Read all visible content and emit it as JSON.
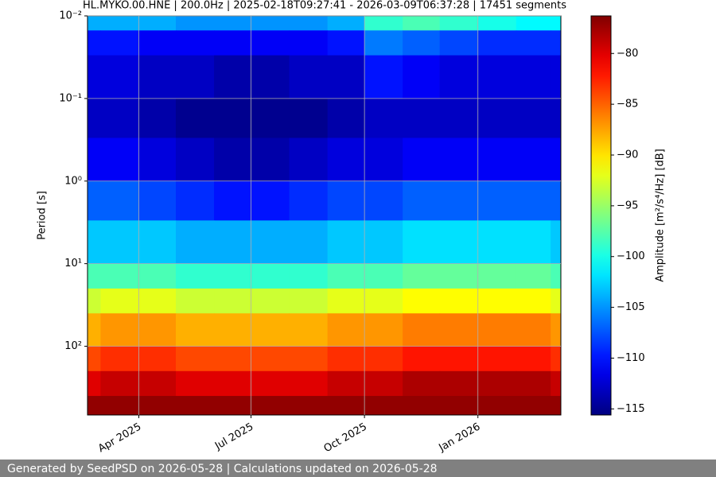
{
  "chart_data": {
    "type": "heatmap",
    "title": "HL.MYKO.00.HNE | 200.0Hz | 2025-02-18T09:27:41 - 2026-03-09T06:37:28 | 17451 segments",
    "y_label": "Period [s]",
    "colorbar_label": "Amplitude [m²/s⁴/Hz] [dB]",
    "colormap": "jet",
    "y_log": true,
    "y_inverted": true,
    "grid": true,
    "xlim": [
      "2025-02-18T09:27:41",
      "2026-03-09T06:37:28"
    ],
    "xticks": [
      {
        "value": "2025-04",
        "label": "Apr 2025"
      },
      {
        "value": "2025-07",
        "label": "Jul 2025"
      },
      {
        "value": "2025-10",
        "label": "Oct 2025"
      },
      {
        "value": "2026-01",
        "label": "Jan 2026"
      }
    ],
    "ylim": [
      0.01,
      680
    ],
    "yticks": [
      {
        "value": 0.01,
        "label": "10⁻²"
      },
      {
        "value": 0.1,
        "label": "10⁻¹"
      },
      {
        "value": 1,
        "label": "10⁰"
      },
      {
        "value": 10,
        "label": "10¹"
      },
      {
        "value": 100,
        "label": "10²"
      }
    ],
    "zlim": [
      -115.6,
      -76.3
    ],
    "zticks": [
      {
        "value": -80,
        "label": "−80"
      },
      {
        "value": -85,
        "label": "−85"
      },
      {
        "value": -90,
        "label": "−90"
      },
      {
        "value": -95,
        "label": "−95"
      },
      {
        "value": -100,
        "label": "−100"
      },
      {
        "value": -105,
        "label": "−105"
      },
      {
        "value": -110,
        "label": "−110"
      },
      {
        "value": -115,
        "label": "−115"
      }
    ],
    "x": [
      "2025-02",
      "2025-03",
      "2025-04",
      "2025-05",
      "2025-06",
      "2025-07",
      "2025-08",
      "2025-09",
      "2025-10",
      "2025-11",
      "2025-12",
      "2026-01",
      "2026-02",
      "2026-03"
    ],
    "y_edges": [
      0.01,
      0.015,
      0.03,
      0.1,
      0.3,
      1,
      3,
      10,
      20,
      40,
      100,
      200,
      400,
      680
    ],
    "z": [
      [
        -104,
        -104,
        -104,
        -105,
        -105,
        -105,
        -105,
        -104,
        -99,
        -98,
        -99,
        -100,
        -101,
        -101
      ],
      [
        -110,
        -110,
        -111,
        -111,
        -111,
        -111,
        -111,
        -110,
        -106,
        -107,
        -108,
        -109,
        -109,
        -109
      ],
      [
        -112,
        -112,
        -113,
        -113,
        -114,
        -114,
        -113,
        -113,
        -110,
        -111,
        -112,
        -112,
        -112,
        -112
      ],
      [
        -113,
        -113,
        -114,
        -115,
        -115,
        -115,
        -115,
        -114,
        -113,
        -113,
        -113,
        -113,
        -113,
        -113
      ],
      [
        -111,
        -111,
        -112,
        -113,
        -114,
        -114,
        -113,
        -112,
        -112,
        -111,
        -111,
        -111,
        -111,
        -111
      ],
      [
        -107,
        -107,
        -108,
        -109,
        -110,
        -110,
        -109,
        -108,
        -108,
        -107,
        -107,
        -107,
        -107,
        -107
      ],
      [
        -103,
        -103,
        -103,
        -104,
        -104,
        -104,
        -104,
        -103,
        -103,
        -102,
        -102,
        -102,
        -102,
        -103
      ],
      [
        -98,
        -98,
        -98,
        -99,
        -99,
        -99,
        -99,
        -98,
        -98,
        -97,
        -97,
        -97,
        -97,
        -98
      ],
      [
        -93,
        -92,
        -92,
        -93,
        -93,
        -93,
        -93,
        -92,
        -92,
        -91,
        -91,
        -91,
        -91,
        -92
      ],
      [
        -88,
        -87,
        -87,
        -88,
        -88,
        -88,
        -88,
        -87,
        -87,
        -86,
        -86,
        -86,
        -86,
        -87
      ],
      [
        -84,
        -83,
        -83,
        -84,
        -84,
        -84,
        -84,
        -83,
        -83,
        -82,
        -82,
        -82,
        -82,
        -83
      ],
      [
        -80,
        -79,
        -79,
        -80,
        -80,
        -80,
        -80,
        -79,
        -79,
        -78,
        -78,
        -78,
        -78,
        -79
      ],
      [
        -77,
        -77,
        -77,
        -77,
        -77,
        -77,
        -77,
        -77,
        -77,
        -77,
        -77,
        -77,
        -77,
        -77
      ]
    ]
  },
  "footer": "Generated by SeedPSD on 2026-05-28 | Calculations updated on 2026-05-28"
}
